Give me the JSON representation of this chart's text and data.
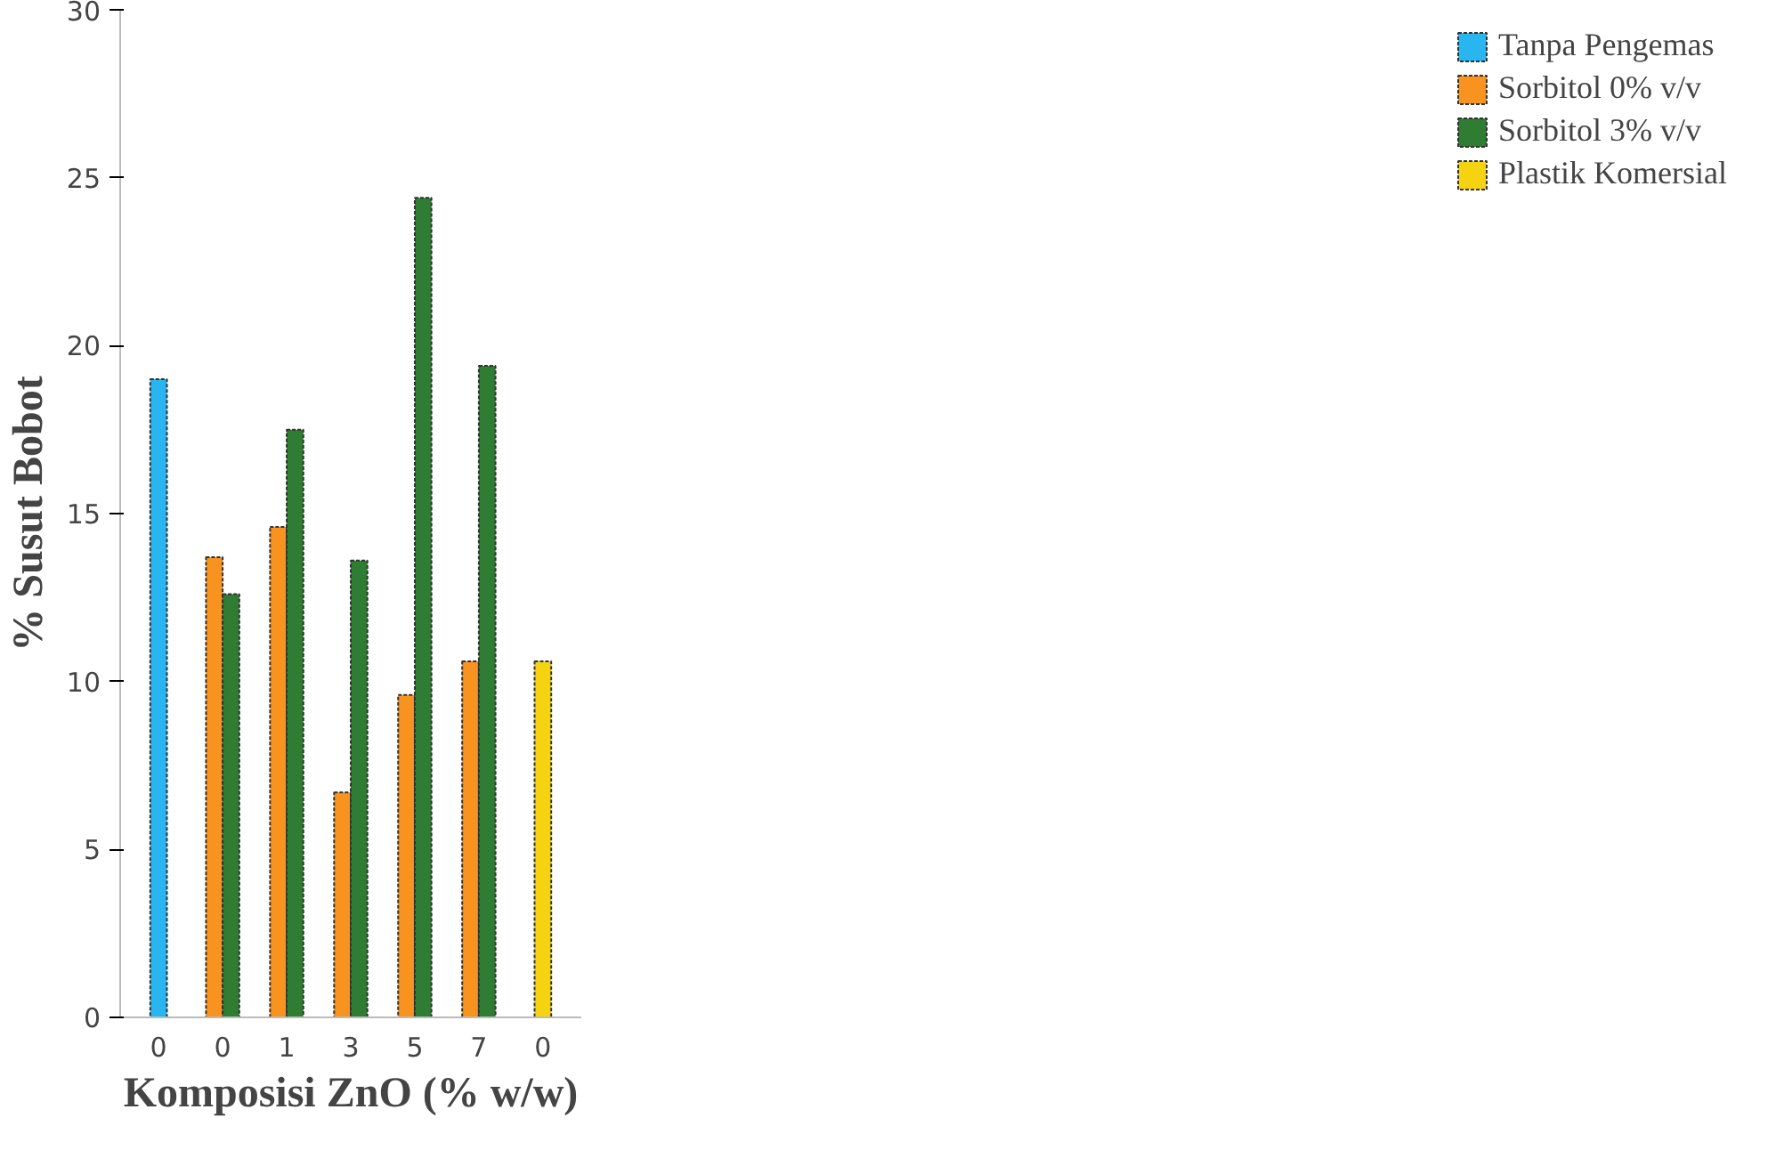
{
  "chart_data": {
    "type": "bar",
    "xlabel": "Komposisi ZnO (% w/w)",
    "ylabel": "% Susut Bobot",
    "categories": [
      "0",
      "0",
      "1",
      "3",
      "5",
      "7",
      "0"
    ],
    "series": [
      {
        "name": "Tanpa Pengemas",
        "color": "#29b6f0",
        "values": [
          19.0,
          null,
          null,
          null,
          null,
          null,
          null
        ]
      },
      {
        "name": "Sorbitol 0% v/v",
        "color": "#f7931e",
        "values": [
          null,
          13.7,
          14.6,
          6.7,
          9.6,
          10.6,
          null
        ]
      },
      {
        "name": "Sorbitol 3% v/v",
        "color": "#2e7d32",
        "values": [
          null,
          12.6,
          17.5,
          13.6,
          24.4,
          19.4,
          null
        ]
      },
      {
        "name": "Plastik Komersial",
        "color": "#f5d311",
        "values": [
          null,
          null,
          null,
          null,
          null,
          null,
          10.6
        ]
      }
    ],
    "ylim": [
      0,
      30
    ],
    "yticks": [
      0,
      5,
      10,
      15,
      20,
      25,
      30
    ],
    "grid": false,
    "legend": "right"
  }
}
